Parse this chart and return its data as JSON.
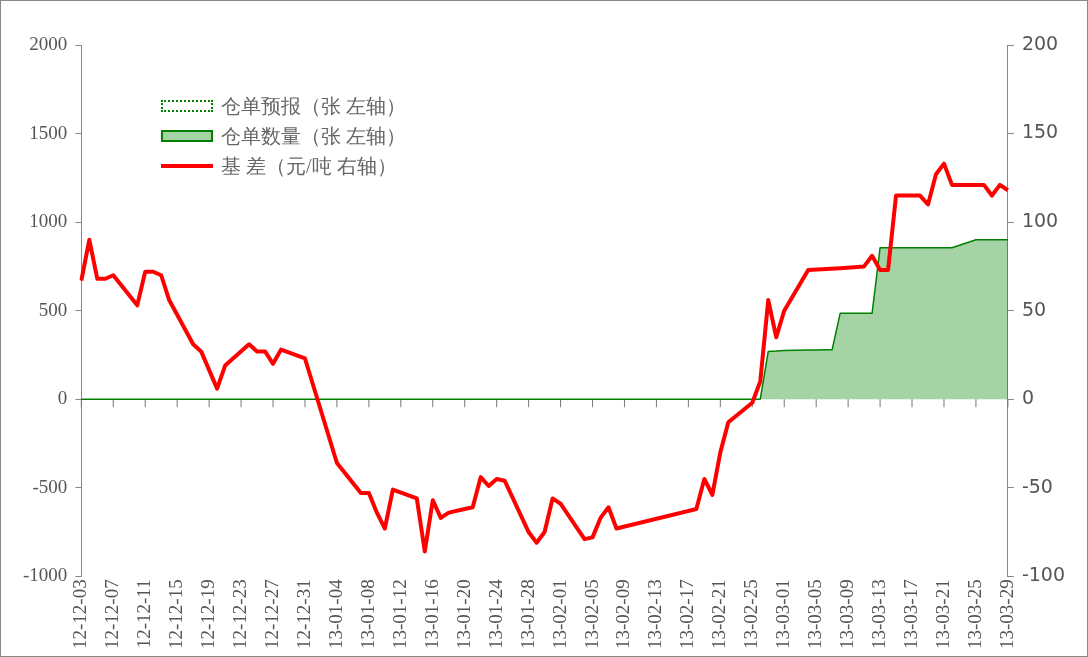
{
  "chart_data": {
    "type": "line",
    "legend": "top left",
    "categories": [
      "12-12-03",
      null,
      null,
      null,
      "12-12-07",
      null,
      null,
      null,
      "12-12-11",
      null,
      null,
      null,
      "12-12-15",
      null,
      null,
      null,
      "12-12-19",
      null,
      null,
      null,
      "12-12-23",
      null,
      null,
      null,
      "12-12-27",
      null,
      null,
      null,
      "12-12-31",
      null,
      null,
      null,
      "13-01-04",
      null,
      null,
      null,
      "13-01-08",
      null,
      null,
      null,
      "13-01-12",
      null,
      null,
      null,
      "13-01-16",
      null,
      null,
      null,
      "13-01-20",
      null,
      null,
      null,
      "13-01-24",
      null,
      null,
      null,
      "13-01-28",
      null,
      null,
      null,
      "13-02-01",
      null,
      null,
      null,
      "13-02-05",
      null,
      null,
      null,
      "13-02-09",
      null,
      null,
      null,
      "13-02-13",
      null,
      null,
      null,
      "13-02-17",
      null,
      null,
      null,
      "13-02-21",
      null,
      null,
      null,
      "13-02-25",
      null,
      null,
      null,
      "13-03-01",
      null,
      null,
      null,
      "13-03-05",
      null,
      null,
      null,
      "13-03-09",
      null,
      null,
      null,
      "13-03-13",
      null,
      null,
      null,
      "13-03-17",
      null,
      null,
      null,
      "13-03-21",
      null,
      null,
      null,
      "13-03-25",
      null,
      null,
      null,
      "13-03-29"
    ],
    "ylim": [
      -1000,
      2000
    ],
    "yticks": [
      -1000,
      -500,
      0,
      500,
      1000,
      1500,
      2000
    ],
    "y2lim": [
      -100,
      200
    ],
    "y2ticks": [
      -100,
      -50,
      0,
      50,
      100,
      150,
      200
    ],
    "series": [
      {
        "name": "仓单预报（张 左轴）",
        "line_style": "dotted",
        "color": "#008000",
        "values": [
          null,
          null,
          null,
          null,
          null,
          null,
          null,
          null,
          null,
          null,
          null,
          null,
          null,
          null,
          null,
          null,
          null,
          null,
          null,
          null,
          null,
          null,
          null,
          null,
          null,
          null,
          null,
          null,
          null,
          null,
          null,
          null,
          null,
          null,
          null,
          null,
          null,
          null,
          null,
          null,
          null,
          null,
          null,
          null,
          null,
          null,
          null,
          null,
          null,
          null,
          null,
          null,
          null,
          null,
          null,
          null,
          null,
          null,
          null,
          null,
          null,
          null,
          null,
          null,
          null,
          null,
          null,
          null,
          null,
          null,
          null,
          null,
          null,
          null,
          null,
          null,
          null,
          null,
          null,
          null,
          null,
          null,
          null,
          null,
          null,
          null,
          null,
          null,
          null,
          null,
          null,
          null,
          null,
          null,
          null,
          null,
          null,
          null,
          null,
          null,
          null,
          null,
          null,
          null,
          null,
          null,
          null,
          null,
          null,
          null,
          null,
          null,
          null,
          null,
          null,
          null,
          null
        ]
      },
      {
        "name": "仓单数量（张 左轴）",
        "type": "area",
        "color": "#008000",
        "values": [
          0,
          0,
          0,
          0,
          0,
          null,
          null,
          0,
          0,
          0,
          0,
          0,
          null,
          null,
          0,
          0,
          null,
          0,
          0,
          null,
          null,
          0,
          0,
          0,
          0,
          0,
          null,
          null,
          0,
          null,
          null,
          null,
          0,
          null,
          null,
          0,
          0,
          0,
          0,
          0,
          null,
          null,
          0,
          0,
          0,
          0,
          0,
          null,
          null,
          0,
          0,
          0,
          0,
          0,
          null,
          null,
          0,
          0,
          0,
          0,
          0,
          null,
          null,
          0,
          0,
          0,
          0,
          0,
          null,
          null,
          null,
          null,
          null,
          null,
          null,
          null,
          null,
          0,
          0,
          0,
          0,
          0,
          null,
          null,
          0,
          0,
          270,
          272,
          275,
          null,
          null,
          278,
          278,
          280,
          280,
          485,
          null,
          null,
          485,
          485,
          855,
          855,
          855,
          null,
          null,
          855,
          855,
          855,
          855,
          855,
          null,
          null,
          900,
          900,
          900,
          900,
          900
        ]
      },
      {
        "name": "基 差（元/吨 右轴）",
        "axis": "y2",
        "color": "#ff0000",
        "values": [
          67,
          90,
          68,
          68,
          70,
          null,
          null,
          53,
          72,
          72,
          70,
          56,
          null,
          null,
          31,
          27,
          null,
          6,
          19,
          null,
          null,
          31,
          27,
          27,
          20,
          28,
          null,
          null,
          23,
          null,
          null,
          null,
          -36,
          null,
          null,
          -53,
          -53,
          -64,
          -73,
          -51,
          null,
          null,
          -56,
          -86,
          -57,
          -67,
          -64,
          null,
          null,
          -61,
          -44,
          -49,
          -45,
          -46,
          null,
          null,
          -75,
          -81,
          -75,
          -56,
          -59,
          null,
          null,
          -79,
          -78,
          -67,
          -61,
          -73,
          null,
          null,
          null,
          null,
          null,
          null,
          null,
          null,
          null,
          -62,
          -45,
          -54,
          -30,
          -13,
          null,
          null,
          -2,
          10,
          56,
          35,
          50,
          null,
          null,
          73,
          null,
          null,
          null,
          74,
          null,
          null,
          75,
          81,
          73,
          73,
          115,
          null,
          null,
          115,
          110,
          127,
          133,
          121,
          null,
          null,
          121,
          121,
          115,
          121,
          118
        ]
      }
    ]
  }
}
